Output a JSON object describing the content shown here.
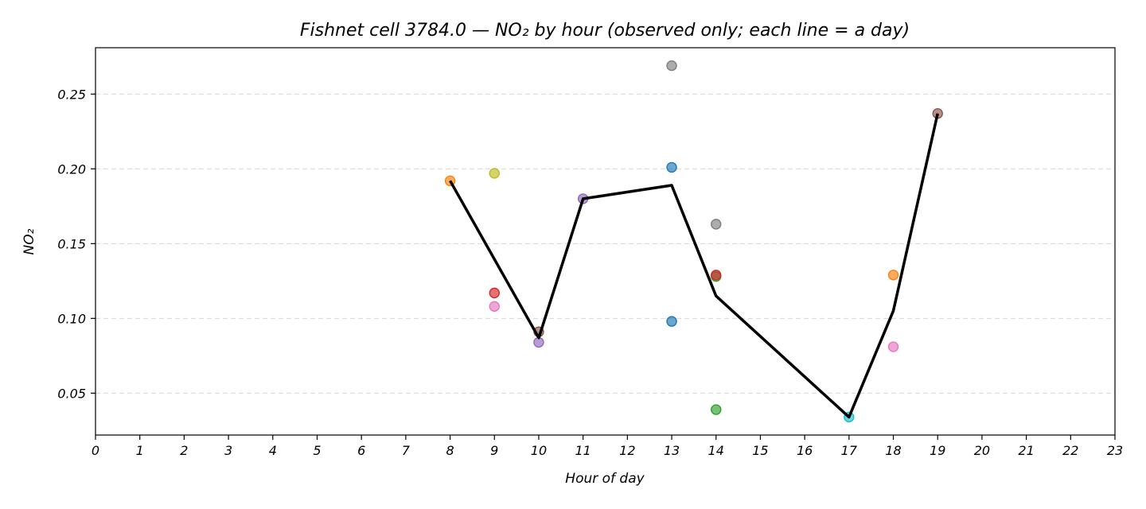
{
  "chart_data": {
    "type": "scatter",
    "title": "Fishnet cell 3784.0 — NO₂ by hour (observed only; each line = a day)",
    "xlabel": "Hour of day",
    "ylabel": "NO₂",
    "xlim": [
      0,
      23
    ],
    "ylim": [
      0.022,
      0.281
    ],
    "x_ticks": [
      0,
      1,
      2,
      3,
      4,
      5,
      6,
      7,
      8,
      9,
      10,
      11,
      12,
      13,
      14,
      15,
      16,
      17,
      18,
      19,
      20,
      21,
      22,
      23
    ],
    "y_ticks": [
      0.05,
      0.1,
      0.15,
      0.2,
      0.25
    ],
    "y_tick_labels": [
      "0.05",
      "0.10",
      "0.15",
      "0.20",
      "0.25"
    ],
    "grid": "y-dashed",
    "points": [
      {
        "x": 8,
        "y": 0.192,
        "color": "#ff7f0e"
      },
      {
        "x": 9,
        "y": 0.197,
        "color": "#bcbd22"
      },
      {
        "x": 9,
        "y": 0.117,
        "color": "#d62728"
      },
      {
        "x": 9,
        "y": 0.108,
        "color": "#e377c2"
      },
      {
        "x": 10,
        "y": 0.091,
        "color": "#8c564b"
      },
      {
        "x": 10,
        "y": 0.084,
        "color": "#9467bd"
      },
      {
        "x": 11,
        "y": 0.18,
        "color": "#9467bd"
      },
      {
        "x": 13,
        "y": 0.269,
        "color": "#7f7f7f"
      },
      {
        "x": 13,
        "y": 0.201,
        "color": "#1f77b4"
      },
      {
        "x": 13,
        "y": 0.098,
        "color": "#1f77b4"
      },
      {
        "x": 14,
        "y": 0.163,
        "color": "#7f7f7f"
      },
      {
        "x": 14,
        "y": 0.128,
        "color": "#2ca02c"
      },
      {
        "x": 14,
        "y": 0.129,
        "color": "#d62728"
      },
      {
        "x": 14,
        "y": 0.039,
        "color": "#2ca02c"
      },
      {
        "x": 17,
        "y": 0.034,
        "color": "#17becf"
      },
      {
        "x": 18,
        "y": 0.129,
        "color": "#ff7f0e"
      },
      {
        "x": 18,
        "y": 0.081,
        "color": "#e377c2"
      },
      {
        "x": 19,
        "y": 0.237,
        "color": "#8c564b"
      }
    ],
    "mean_line": {
      "color": "#000000",
      "x": [
        8,
        10,
        11,
        13,
        14,
        17,
        18,
        19
      ],
      "y": [
        0.192,
        0.087,
        0.18,
        0.189,
        0.115,
        0.034,
        0.105,
        0.237
      ]
    }
  }
}
